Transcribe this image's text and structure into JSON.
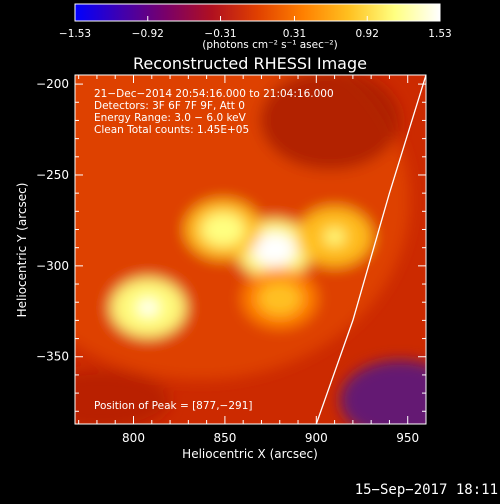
{
  "chart_data": {
    "type": "heatmap",
    "title": "Reconstructed RHESSI Image",
    "xlabel": "Heliocentric X (arcsec)",
    "ylabel": "Heliocentric Y (arcsec)",
    "xlim": [
      768,
      960
    ],
    "ylim": [
      -387,
      -195
    ],
    "xticks": [
      800,
      850,
      900,
      950
    ],
    "xtick_labels": [
      "800",
      "850",
      "900",
      "950"
    ],
    "yticks": [
      -200,
      -250,
      -300,
      -350
    ],
    "ytick_labels": [
      "−200",
      "−250",
      "−300",
      "−350"
    ],
    "colorbar": {
      "range": [
        -1.53,
        1.53
      ],
      "tick_values": [
        -1.53,
        -0.92,
        -0.31,
        0.31,
        0.92,
        1.53
      ],
      "tick_labels": [
        "−1.53",
        "−0.92",
        "−0.31",
        "0.31",
        "0.92",
        "1.53"
      ],
      "units_label": "(photons cm⁻² s⁻¹ asec⁻²)",
      "colormap": [
        "#0000ff",
        "#3f00b0",
        "#7a0068",
        "#b01020",
        "#e04000",
        "#ff8000",
        "#ffc020",
        "#ffff80",
        "#ffffff"
      ]
    },
    "annotations": [
      "21−Dec−2014 20:54:16.000 to 21:04:16.000",
      "Detectors: 3F 6F 7F 9F, Att 0",
      "Energy Range: 3.0 − 6.0 keV",
      "Clean    Total counts: 1.45E+05"
    ],
    "peak_label": "Position of Peak = [877,−291]",
    "peak": [
      877,
      -291
    ],
    "sources": [
      {
        "x": 877,
        "y": -291,
        "intensity": 1.53
      },
      {
        "x": 849,
        "y": -280,
        "intensity": 1.2
      },
      {
        "x": 808,
        "y": -323,
        "intensity": 1.45
      },
      {
        "x": 910,
        "y": -284,
        "intensity": 1.05
      },
      {
        "x": 880,
        "y": -318,
        "intensity": 0.95
      }
    ],
    "limb": {
      "x": [
        960,
        940,
        920,
        900
      ],
      "y": [
        -195,
        -260,
        -330,
        -387
      ]
    }
  },
  "footer": {
    "timestamp": "15−Sep−2017 18:11"
  }
}
